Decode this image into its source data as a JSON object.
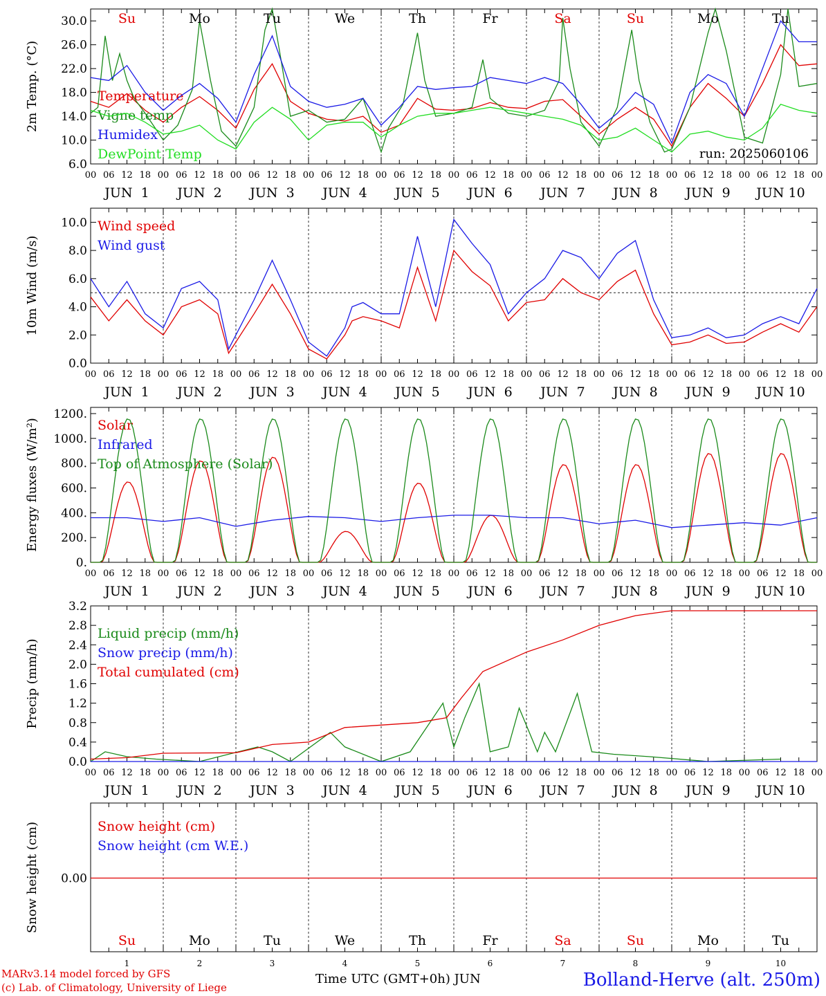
{
  "footer": {
    "credit_model": "MARv3.14 model forced by GFS",
    "credit_lab": "(c) Lab. of Climatology, University of Liege",
    "axis_label": "Time UTC (GMT+0h) JUN",
    "station": "Bolland-Herve (alt. 250m)"
  },
  "colors": {
    "red": "#e00000",
    "green": "#1a8a1a",
    "light_green": "#22dd22",
    "blue": "#1a1ae6",
    "grid": "#000000"
  },
  "days": {
    "weekdays": [
      "Su",
      "Mo",
      "Tu",
      "We",
      "Th",
      "Fr",
      "Sa",
      "Su",
      "Mo",
      "Tu"
    ],
    "weekend_flags": [
      true,
      false,
      false,
      false,
      false,
      false,
      true,
      true,
      false,
      false
    ],
    "date_labels": [
      "JUN  1",
      "JUN  2",
      "JUN  3",
      "JUN  4",
      "JUN  5",
      "JUN  6",
      "JUN  7",
      "JUN  8",
      "JUN  9",
      "JUN 10"
    ],
    "day_numbers": [
      "1",
      "2",
      "3",
      "4",
      "5",
      "6",
      "7",
      "8",
      "9",
      "10"
    ],
    "hour_ticks": [
      "00",
      "06",
      "12",
      "18"
    ],
    "end_tick": "00"
  },
  "chart_data": [
    {
      "id": "temperature",
      "type": "line",
      "ylabel": "2m Temp. (°C)",
      "ylim": [
        6,
        32
      ],
      "yticks": [
        "6.0",
        "10.0",
        "14.0",
        "18.0",
        "22.0",
        "26.0",
        "30.0"
      ],
      "ytick_values": [
        6,
        10,
        14,
        18,
        22,
        26,
        30
      ],
      "x_unit": "day of June (fractional)",
      "annotation": "run: 2025060106",
      "series": [
        {
          "name": "Temperature",
          "color": "red",
          "x": [
            1,
            1.25,
            1.5,
            1.75,
            2,
            2.25,
            2.5,
            2.75,
            3,
            3.25,
            3.5,
            3.75,
            4,
            4.25,
            4.5,
            4.75,
            5,
            5.25,
            5.5,
            5.75,
            6,
            6.25,
            6.5,
            6.75,
            7,
            7.25,
            7.5,
            7.75,
            8,
            8.25,
            8.5,
            8.75,
            9,
            9.25,
            9.5,
            9.75,
            10,
            10.25,
            10.5,
            10.75,
            11
          ],
          "y": [
            16.5,
            15.5,
            17.8,
            15.0,
            13.0,
            15.5,
            17.3,
            15.0,
            12.0,
            18.5,
            22.8,
            16.5,
            14.5,
            13.5,
            13.2,
            14.0,
            11.3,
            12.5,
            17.0,
            15.2,
            15.0,
            15.3,
            16.3,
            15.5,
            15.3,
            16.5,
            16.8,
            14.0,
            11.0,
            13.5,
            15.5,
            13.5,
            9.0,
            15.5,
            19.5,
            17.0,
            14.0,
            19.5,
            26.0,
            22.5,
            22.8
          ]
        },
        {
          "name": "Vigne temp",
          "color": "green",
          "x": [
            1,
            1.1,
            1.2,
            1.3,
            1.4,
            1.5,
            1.6,
            1.75,
            2,
            2.2,
            2.4,
            2.5,
            2.65,
            2.8,
            3,
            3.25,
            3.4,
            3.5,
            3.6,
            3.75,
            4,
            4.25,
            4.5,
            4.75,
            5,
            5.1,
            5.3,
            5.5,
            5.6,
            5.75,
            6,
            6.25,
            6.4,
            6.5,
            6.6,
            6.75,
            7,
            7.25,
            7.45,
            7.5,
            7.6,
            7.75,
            8,
            8.25,
            8.45,
            8.55,
            8.7,
            8.9,
            9,
            9.25,
            9.5,
            9.6,
            9.75,
            10,
            10.25,
            10.5,
            10.6,
            10.75,
            11
          ],
          "y": [
            14.5,
            15.5,
            27.5,
            20.0,
            24.5,
            20.0,
            17.0,
            14.5,
            10.0,
            12.5,
            18.5,
            30.0,
            20.0,
            11.5,
            9.0,
            15.5,
            28.5,
            32.0,
            25.0,
            14.0,
            15.0,
            13.0,
            13.5,
            17.0,
            8.0,
            12.0,
            16.0,
            28.0,
            20.0,
            14.0,
            14.5,
            15.5,
            23.5,
            17.0,
            16.0,
            14.5,
            14.0,
            15.0,
            20.0,
            30.5,
            22.0,
            13.0,
            9.0,
            15.5,
            28.5,
            20.0,
            13.0,
            8.0,
            8.5,
            15.5,
            28.0,
            33.0,
            25.0,
            10.5,
            9.5,
            21.0,
            33.0,
            19.0,
            19.5
          ]
        },
        {
          "name": "Humidex",
          "color": "blue",
          "x": [
            1,
            1.25,
            1.5,
            1.75,
            2,
            2.25,
            2.5,
            2.75,
            3,
            3.25,
            3.5,
            3.75,
            4,
            4.25,
            4.5,
            4.75,
            5,
            5.25,
            5.5,
            5.75,
            6,
            6.25,
            6.5,
            6.75,
            7,
            7.25,
            7.5,
            7.75,
            8,
            8.25,
            8.5,
            8.75,
            9,
            9.25,
            9.5,
            9.75,
            10,
            10.25,
            10.5,
            10.75,
            11
          ],
          "y": [
            20.5,
            20.0,
            22.5,
            18.0,
            15.0,
            17.5,
            19.5,
            17.0,
            13.0,
            21.0,
            27.5,
            19.0,
            16.5,
            15.5,
            16.0,
            17.0,
            12.5,
            15.5,
            19.0,
            18.5,
            18.8,
            19.0,
            20.5,
            20.0,
            19.5,
            20.5,
            19.5,
            16.0,
            12.0,
            14.5,
            18.0,
            16.0,
            9.5,
            18.0,
            21.0,
            19.5,
            14.0,
            22.0,
            30.0,
            26.5,
            26.5
          ]
        },
        {
          "name": "DewPoint Temp",
          "color": "light_green",
          "x": [
            1,
            1.25,
            1.5,
            1.75,
            2,
            2.25,
            2.5,
            2.75,
            3,
            3.25,
            3.5,
            3.75,
            4,
            4.25,
            4.5,
            4.75,
            5,
            5.25,
            5.5,
            5.75,
            6,
            6.25,
            6.5,
            6.75,
            7,
            7.25,
            7.5,
            7.75,
            8,
            8.25,
            8.5,
            8.75,
            9,
            9.25,
            9.5,
            9.75,
            10,
            10.25,
            10.5,
            10.75,
            11
          ],
          "y": [
            15.0,
            14.0,
            14.5,
            13.0,
            11.0,
            11.5,
            12.5,
            10.0,
            8.5,
            13.0,
            15.5,
            13.5,
            10.0,
            12.5,
            13.0,
            13.0,
            10.5,
            12.5,
            14.0,
            14.5,
            14.5,
            15.0,
            15.5,
            15.0,
            14.5,
            14.0,
            13.5,
            12.5,
            10.0,
            10.5,
            12.0,
            10.0,
            8.0,
            11.0,
            11.5,
            10.5,
            10.0,
            12.0,
            16.0,
            15.0,
            14.5
          ]
        }
      ]
    },
    {
      "id": "wind",
      "type": "line",
      "ylabel": "10m Wind (m/s)",
      "ylim": [
        0,
        11
      ],
      "yticks": [
        "0.0",
        "2.0",
        "4.0",
        "6.0",
        "8.0",
        "10.0"
      ],
      "ytick_values": [
        0,
        2,
        4,
        6,
        8,
        10
      ],
      "reference_line": 5,
      "series": [
        {
          "name": "Wind speed",
          "color": "red",
          "x": [
            1,
            1.25,
            1.5,
            1.75,
            2,
            2.25,
            2.5,
            2.75,
            2.9,
            3,
            3.25,
            3.5,
            3.75,
            4,
            4.25,
            4.5,
            4.6,
            4.75,
            5,
            5.25,
            5.5,
            5.75,
            6,
            6.25,
            6.5,
            6.75,
            7,
            7.25,
            7.5,
            7.75,
            8,
            8.25,
            8.5,
            8.75,
            9,
            9.25,
            9.5,
            9.75,
            10,
            10.25,
            10.5,
            10.75,
            11
          ],
          "y": [
            4.7,
            3.0,
            4.5,
            3.0,
            2.0,
            4.0,
            4.5,
            3.5,
            0.7,
            1.5,
            3.5,
            5.6,
            3.5,
            1.0,
            0.3,
            2.0,
            3.0,
            3.3,
            3.0,
            2.5,
            6.8,
            3.0,
            8.0,
            6.5,
            5.5,
            3.0,
            4.3,
            4.5,
            6.0,
            5.0,
            4.5,
            5.8,
            6.6,
            3.5,
            1.3,
            1.5,
            2.0,
            1.4,
            1.5,
            2.2,
            2.8,
            2.2,
            4.0
          ]
        },
        {
          "name": "Wind gust",
          "color": "blue",
          "x": [
            1,
            1.25,
            1.5,
            1.75,
            2,
            2.25,
            2.5,
            2.75,
            2.9,
            3,
            3.25,
            3.5,
            3.75,
            4,
            4.25,
            4.5,
            4.6,
            4.75,
            5,
            5.25,
            5.5,
            5.75,
            6,
            6.25,
            6.5,
            6.75,
            7,
            7.25,
            7.5,
            7.75,
            8,
            8.25,
            8.5,
            8.75,
            9,
            9.25,
            9.5,
            9.75,
            10,
            10.25,
            10.5,
            10.75,
            11
          ],
          "y": [
            6.0,
            4.0,
            5.8,
            3.5,
            2.5,
            5.3,
            5.8,
            4.5,
            1.0,
            2.0,
            4.5,
            7.3,
            4.5,
            1.5,
            0.5,
            2.5,
            4.0,
            4.3,
            3.5,
            3.5,
            9.0,
            4.0,
            10.2,
            8.5,
            7.0,
            3.5,
            5.0,
            6.0,
            8.0,
            7.5,
            6.0,
            7.8,
            8.7,
            4.5,
            1.8,
            2.0,
            2.5,
            1.8,
            2.0,
            2.8,
            3.3,
            2.8,
            5.3
          ]
        }
      ]
    },
    {
      "id": "energy",
      "type": "line",
      "ylabel": "Energy fluxes (W/m²)",
      "ylim": [
        0,
        1250
      ],
      "yticks": [
        "0.",
        "200.",
        "400.",
        "600.",
        "800.",
        "1000.",
        "1200."
      ],
      "ytick_values": [
        0,
        200,
        400,
        600,
        800,
        1000,
        1200
      ],
      "series": [
        {
          "name": "Solar",
          "color": "red",
          "daily_peaks": [
            650,
            820,
            850,
            250,
            640,
            380,
            790,
            790,
            880,
            880
          ]
        },
        {
          "name": "Infrared",
          "color": "blue",
          "x": [
            1,
            1.5,
            2,
            2.5,
            3,
            3.5,
            4,
            4.5,
            5,
            5.5,
            6,
            6.5,
            7,
            7.5,
            8,
            8.5,
            9,
            9.5,
            10,
            10.5,
            11
          ],
          "y": [
            360,
            360,
            330,
            360,
            290,
            340,
            370,
            360,
            330,
            360,
            380,
            380,
            360,
            360,
            310,
            340,
            280,
            300,
            320,
            300,
            360
          ]
        },
        {
          "name": "Top of Atmosphere (Solar)",
          "color": "green",
          "daily_peaks": [
            1160,
            1160,
            1160,
            1160,
            1160,
            1160,
            1160,
            1160,
            1160,
            1160
          ]
        }
      ]
    },
    {
      "id": "precip",
      "type": "line",
      "ylabel": "Precip (mm/h)",
      "ylim": [
        0,
        3.2
      ],
      "yticks": [
        "0.0",
        "0.4",
        "0.8",
        "1.2",
        "1.6",
        "2.0",
        "2.4",
        "2.8",
        "3.2"
      ],
      "ytick_values": [
        0,
        0.4,
        0.8,
        1.2,
        1.6,
        2.0,
        2.4,
        2.8,
        3.2
      ],
      "series": [
        {
          "name": "Liquid precip (mm/h)",
          "color": "green",
          "x": [
            1,
            1.2,
            1.5,
            1.9,
            2.5,
            3.3,
            3.5,
            3.75,
            4.3,
            4.5,
            5.0,
            5.4,
            5.85,
            6.0,
            6.15,
            6.35,
            6.5,
            6.75,
            6.9,
            7.15,
            7.25,
            7.4,
            7.7,
            7.9,
            8.2,
            8.7,
            9.5,
            10.5
          ],
          "y": [
            0.0,
            0.2,
            0.1,
            0.05,
            0.0,
            0.3,
            0.2,
            0.0,
            0.6,
            0.3,
            0.0,
            0.2,
            1.2,
            0.3,
            0.9,
            1.6,
            0.2,
            0.3,
            1.1,
            0.2,
            0.6,
            0.2,
            1.4,
            0.2,
            0.15,
            0.1,
            0.0,
            0.05
          ]
        },
        {
          "name": "Snow precip (mm/h)",
          "color": "blue",
          "x": [
            1,
            11
          ],
          "y": [
            0,
            0
          ]
        },
        {
          "name": "Total cumulated (cm)",
          "color": "red",
          "x": [
            1,
            1.5,
            2,
            3,
            3.5,
            4,
            4.5,
            5,
            5.5,
            5.9,
            6.1,
            6.4,
            7,
            7.5,
            8,
            8.5,
            8.75,
            9,
            10,
            11
          ],
          "y": [
            0.05,
            0.08,
            0.17,
            0.18,
            0.35,
            0.4,
            0.7,
            0.75,
            0.8,
            0.9,
            1.3,
            1.85,
            2.25,
            2.5,
            2.8,
            3.0,
            3.05,
            3.1,
            3.1,
            3.1
          ]
        }
      ]
    },
    {
      "id": "snow",
      "type": "line",
      "ylabel": "Snow height (cm)",
      "yticks": [
        "0.00"
      ],
      "ytick_values": [
        0
      ],
      "series": [
        {
          "name": "Snow height (cm)",
          "color": "red",
          "x": [
            1,
            11
          ],
          "y": [
            0,
            0
          ]
        },
        {
          "name": "Snow height (cm W.E.)",
          "color": "blue",
          "x": [
            1,
            11
          ],
          "y": [
            0,
            0
          ]
        }
      ]
    }
  ]
}
